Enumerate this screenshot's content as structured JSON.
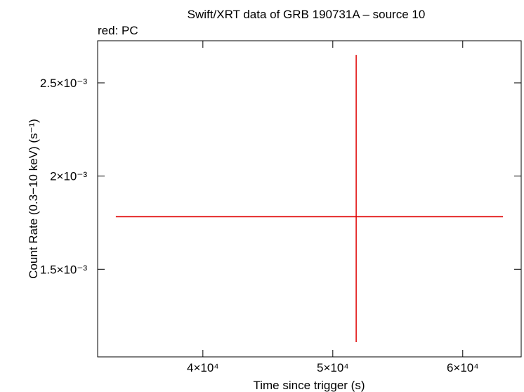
{
  "chart_data": {
    "type": "errorbar",
    "title": "Swift/XRT data of GRB 190731A – source 10",
    "subtitle": "red: PC",
    "x_label": "Time since trigger (s)",
    "y_label": "Count Rate (0.3−10 keV) (s⁻¹)",
    "x": [
      51800
    ],
    "values": [
      0.001782
    ],
    "xerr_minus": [
      18500
    ],
    "xerr_plus": [
      11300
    ],
    "yerr_minus": [
      0.000673
    ],
    "yerr_plus": [
      0.000868
    ],
    "color": "#e00000",
    "xlim": [
      31900,
      64500
    ],
    "ylim": [
      0.00103,
      0.002726
    ],
    "xticks": [
      {
        "value": 40000,
        "label": "4×10⁴"
      },
      {
        "value": 50000,
        "label": "5×10⁴"
      },
      {
        "value": 60000,
        "label": "6×10⁴"
      }
    ],
    "yticks": [
      {
        "value": 0.0015,
        "label": "1.5×10⁻³"
      },
      {
        "value": 0.002,
        "label": "2×10⁻³"
      },
      {
        "value": 0.0025,
        "label": "2.5×10⁻³"
      }
    ]
  }
}
